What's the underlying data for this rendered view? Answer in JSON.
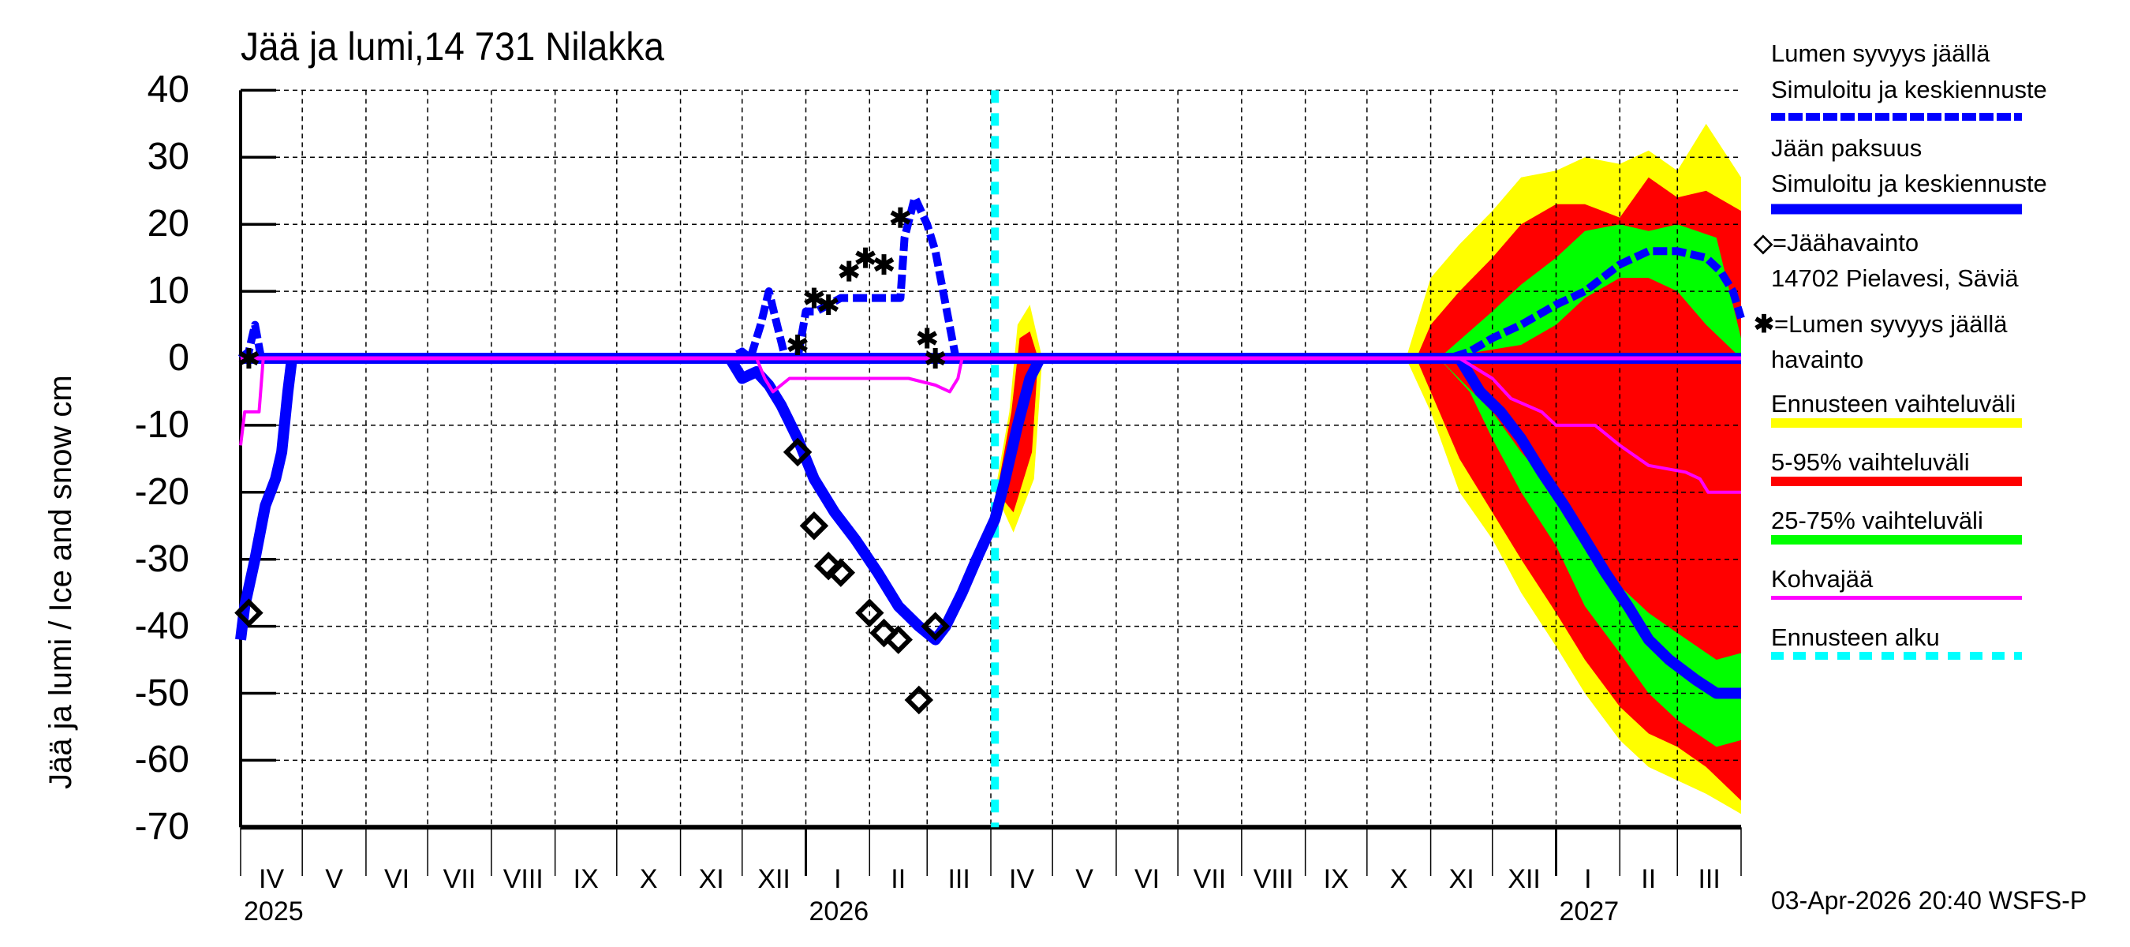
{
  "title": "Jää ja lumi,14 731 Nilakka",
  "y_axis_label": "Jää ja lumi / Ice and snow    cm",
  "timestamp": "03-Apr-2026 20:40 WSFS-P",
  "colors": {
    "simulated": "#0000ff",
    "kohvajaa": "#ff00ff",
    "range_full": "#ffff00",
    "range_5_95": "#ff0000",
    "range_25_75": "#00ff00",
    "forecast_start": "#00ffff",
    "observation": "#000000",
    "grid": "#000000"
  },
  "legend": {
    "snow_title": "Lumen syvyys jäällä",
    "snow_sub": "Simuloitu ja keskiennuste",
    "ice_title": "Jään paksuus",
    "ice_sub": "Simuloitu ja keskiennuste",
    "ice_obs_symbol": "◇",
    "ice_obs_label": "=Jäähavainto",
    "ice_obs_station": "14702 Pielavesi, Säviä",
    "snow_obs_symbol": "✱",
    "snow_obs_label": "=Lumen syvyys jäällä",
    "snow_obs_sub": "havainto",
    "range_full": "Ennusteen vaihteluväli",
    "range_5_95": "5-95% vaihteluväli",
    "range_25_75": "25-75% vaihteluväli",
    "kohvajaa": "Kohvajää",
    "forecast_start": "Ennusteen alku"
  },
  "y_ticks": [
    "40",
    "30",
    "20",
    "10",
    "0",
    "-10",
    "-20",
    "-30",
    "-40",
    "-50",
    "-60",
    "-70"
  ],
  "x_months": [
    "IV",
    "V",
    "VI",
    "VII",
    "VIII",
    "IX",
    "X",
    "XI",
    "XII",
    "I",
    "II",
    "III",
    "IV",
    "V",
    "VI",
    "VII",
    "VIII",
    "IX",
    "X",
    "XI",
    "XII",
    "I",
    "II",
    "III"
  ],
  "x_years": [
    "2025",
    "2026",
    "2027"
  ],
  "chart_data": {
    "type": "line",
    "title": "Jää ja lumi,14 731 Nilakka",
    "xlabel": "",
    "ylabel": "Jää ja lumi / Ice and snow cm",
    "ylim": [
      -70,
      40
    ],
    "xlim": [
      "2025-04-01",
      "2027-04-01"
    ],
    "grid": true,
    "legend_position": "right",
    "forecast_start": "2026-04-03",
    "note": "Ice thickness plotted as negative values (below 0), snow depth on ice as positive values",
    "series": [
      {
        "name": "Lumen syvyys jäällä – Simuloitu ja keskiennuste",
        "style": "dashed",
        "points": [
          [
            "2025-04-01",
            0
          ],
          [
            "2025-04-05",
            1
          ],
          [
            "2025-04-08",
            5
          ],
          [
            "2025-04-11",
            0
          ],
          [
            "2025-11-25",
            0
          ],
          [
            "2025-12-01",
            1
          ],
          [
            "2025-12-05",
            0
          ],
          [
            "2025-12-10",
            5
          ],
          [
            "2025-12-14",
            10
          ],
          [
            "2025-12-18",
            5
          ],
          [
            "2025-12-22",
            0
          ],
          [
            "2025-12-28",
            0
          ],
          [
            "2026-01-01",
            7
          ],
          [
            "2026-01-06",
            7
          ],
          [
            "2026-01-12",
            8
          ],
          [
            "2026-01-18",
            9
          ],
          [
            "2026-01-25",
            9
          ],
          [
            "2026-02-05",
            9
          ],
          [
            "2026-02-12",
            9
          ],
          [
            "2026-02-16",
            9
          ],
          [
            "2026-02-18",
            18
          ],
          [
            "2026-02-23",
            24
          ],
          [
            "2026-03-01",
            20
          ],
          [
            "2026-03-05",
            16
          ],
          [
            "2026-03-10",
            8
          ],
          [
            "2026-03-15",
            0
          ],
          [
            "2026-04-03",
            0
          ],
          [
            "2026-11-10",
            0
          ],
          [
            "2026-11-20",
            1
          ],
          [
            "2026-12-01",
            3
          ],
          [
            "2026-12-15",
            5
          ],
          [
            "2027-01-01",
            8
          ],
          [
            "2027-01-15",
            10
          ],
          [
            "2027-02-01",
            14
          ],
          [
            "2027-02-15",
            16
          ],
          [
            "2027-03-01",
            16
          ],
          [
            "2027-03-15",
            15
          ],
          [
            "2027-03-22",
            13
          ],
          [
            "2027-03-28",
            10
          ],
          [
            "2027-04-01",
            6
          ]
        ]
      },
      {
        "name": "Jään paksuus – Simuloitu ja keskiennuste",
        "style": "solid",
        "points": [
          [
            "2025-04-01",
            -42
          ],
          [
            "2025-04-03",
            -37
          ],
          [
            "2025-04-08",
            -30
          ],
          [
            "2025-04-13",
            -22
          ],
          [
            "2025-04-18",
            -18
          ],
          [
            "2025-04-21",
            -14
          ],
          [
            "2025-04-24",
            -5
          ],
          [
            "2025-04-26",
            0
          ],
          [
            "2025-11-25",
            0
          ],
          [
            "2025-12-01",
            -3
          ],
          [
            "2025-12-08",
            -2
          ],
          [
            "2025-12-14",
            -4
          ],
          [
            "2025-12-20",
            -7
          ],
          [
            "2025-12-28",
            -12
          ],
          [
            "2026-01-05",
            -18
          ],
          [
            "2026-01-15",
            -23
          ],
          [
            "2026-01-25",
            -27
          ],
          [
            "2026-02-05",
            -32
          ],
          [
            "2026-02-15",
            -37
          ],
          [
            "2026-02-25",
            -40
          ],
          [
            "2026-03-05",
            -42
          ],
          [
            "2026-03-10",
            -40
          ],
          [
            "2026-03-18",
            -35
          ],
          [
            "2026-03-25",
            -30
          ],
          [
            "2026-04-03",
            -24
          ],
          [
            "2026-04-08",
            -18
          ],
          [
            "2026-04-14",
            -10
          ],
          [
            "2026-04-20",
            -3
          ],
          [
            "2026-04-25",
            0
          ],
          [
            "2026-11-15",
            0
          ],
          [
            "2026-11-25",
            -5
          ],
          [
            "2026-12-05",
            -8
          ],
          [
            "2026-12-15",
            -12
          ],
          [
            "2026-12-25",
            -17
          ],
          [
            "2027-01-05",
            -22
          ],
          [
            "2027-01-15",
            -27
          ],
          [
            "2027-01-25",
            -32
          ],
          [
            "2027-02-05",
            -37
          ],
          [
            "2027-02-15",
            -42
          ],
          [
            "2027-02-25",
            -45
          ],
          [
            "2027-03-10",
            -48
          ],
          [
            "2027-03-20",
            -50
          ],
          [
            "2027-04-01",
            -50
          ]
        ]
      },
      {
        "name": "Kohvajää",
        "style": "solid",
        "points": [
          [
            "2025-04-01",
            -13
          ],
          [
            "2025-04-03",
            -8
          ],
          [
            "2025-04-10",
            -8
          ],
          [
            "2025-04-12",
            0
          ],
          [
            "2025-11-25",
            0
          ],
          [
            "2025-12-08",
            0
          ],
          [
            "2025-12-12",
            -3
          ],
          [
            "2025-12-16",
            -5
          ],
          [
            "2025-12-20",
            -4
          ],
          [
            "2025-12-24",
            -3
          ],
          [
            "2026-02-20",
            -3
          ],
          [
            "2026-03-05",
            -4
          ],
          [
            "2026-03-12",
            -5
          ],
          [
            "2026-03-16",
            -3
          ],
          [
            "2026-03-18",
            0
          ],
          [
            "2026-11-15",
            0
          ],
          [
            "2026-12-01",
            -3
          ],
          [
            "2026-12-10",
            -6
          ],
          [
            "2026-12-25",
            -8
          ],
          [
            "2027-01-01",
            -10
          ],
          [
            "2027-01-20",
            -10
          ],
          [
            "2027-02-01",
            -13
          ],
          [
            "2027-02-15",
            -16
          ],
          [
            "2027-03-05",
            -17
          ],
          [
            "2027-03-12",
            -18
          ],
          [
            "2027-03-16",
            -20
          ],
          [
            "2027-04-01",
            -20
          ]
        ]
      },
      {
        "name": "Jäähavainto 14702 Pielavesi, Säviä",
        "marker": "diamond",
        "points": [
          [
            "2025-04-05",
            -38
          ],
          [
            "2025-12-28",
            -14
          ],
          [
            "2026-01-05",
            -25
          ],
          [
            "2026-01-12",
            -31
          ],
          [
            "2026-01-18",
            -32
          ],
          [
            "2026-02-01",
            -38
          ],
          [
            "2026-02-08",
            -41
          ],
          [
            "2026-02-15",
            -42
          ],
          [
            "2026-02-25",
            -51
          ],
          [
            "2026-03-05",
            -40
          ]
        ]
      },
      {
        "name": "Lumen syvyys jäällä havainto",
        "marker": "asterisk",
        "points": [
          [
            "2025-04-05",
            0
          ],
          [
            "2025-12-28",
            2
          ],
          [
            "2026-01-05",
            9
          ],
          [
            "2026-01-12",
            8
          ],
          [
            "2026-01-22",
            13
          ],
          [
            "2026-01-30",
            15
          ],
          [
            "2026-02-08",
            14
          ],
          [
            "2026-02-16",
            21
          ],
          [
            "2026-03-01",
            3
          ],
          [
            "2026-03-05",
            0
          ]
        ]
      },
      {
        "name": "Ennusteen vaihteluväli (snow, upper)",
        "type": "area",
        "points": [
          [
            "2026-10-20",
            0
          ],
          [
            "2026-10-25",
            5
          ],
          [
            "2026-11-01",
            12
          ],
          [
            "2026-11-15",
            17
          ],
          [
            "2026-12-01",
            22
          ],
          [
            "2026-12-15",
            27
          ],
          [
            "2027-01-01",
            28
          ],
          [
            "2027-01-15",
            30
          ],
          [
            "2027-02-01",
            29
          ],
          [
            "2027-02-15",
            31
          ],
          [
            "2027-03-01",
            28
          ],
          [
            "2027-03-15",
            35
          ],
          [
            "2027-04-01",
            27
          ]
        ]
      },
      {
        "name": "5-95% vaihteluväli (snow, upper)",
        "type": "area",
        "points": [
          [
            "2026-10-25",
            0
          ],
          [
            "2026-11-01",
            5
          ],
          [
            "2026-11-15",
            10
          ],
          [
            "2026-12-01",
            15
          ],
          [
            "2026-12-15",
            20
          ],
          [
            "2027-01-01",
            23
          ],
          [
            "2027-01-15",
            23
          ],
          [
            "2027-02-01",
            21
          ],
          [
            "2027-02-15",
            27
          ],
          [
            "2027-03-01",
            24
          ],
          [
            "2027-03-15",
            25
          ],
          [
            "2027-04-01",
            22
          ]
        ]
      },
      {
        "name": "25-75% vaihteluväli (snow)",
        "type": "area",
        "upper": [
          [
            "2026-11-05",
            0
          ],
          [
            "2026-12-01",
            7
          ],
          [
            "2026-12-15",
            11
          ],
          [
            "2027-01-01",
            15
          ],
          [
            "2027-01-15",
            19
          ],
          [
            "2027-02-01",
            20
          ],
          [
            "2027-02-15",
            19
          ],
          [
            "2027-03-01",
            20
          ],
          [
            "2027-03-20",
            18
          ],
          [
            "2027-04-01",
            3
          ]
        ],
        "lower": [
          [
            "2026-11-05",
            0
          ],
          [
            "2026-12-15",
            2
          ],
          [
            "2027-01-01",
            5
          ],
          [
            "2027-01-15",
            9
          ],
          [
            "2027-02-01",
            12
          ],
          [
            "2027-02-15",
            12
          ],
          [
            "2027-03-01",
            10
          ],
          [
            "2027-03-15",
            5
          ],
          [
            "2027-04-01",
            0
          ]
        ]
      },
      {
        "name": "Ennusteen vaihteluväli (ice, lower)",
        "type": "area",
        "points": [
          [
            "2026-10-20",
            0
          ],
          [
            "2026-11-01",
            -8
          ],
          [
            "2026-11-15",
            -20
          ],
          [
            "2026-12-01",
            -27
          ],
          [
            "2026-12-15",
            -35
          ],
          [
            "2027-01-01",
            -43
          ],
          [
            "2027-01-15",
            -50
          ],
          [
            "2027-02-01",
            -57
          ],
          [
            "2027-02-15",
            -61
          ],
          [
            "2027-03-01",
            -63
          ],
          [
            "2027-03-15",
            -65
          ],
          [
            "2027-04-01",
            -68
          ]
        ]
      },
      {
        "name": "5-95% vaihteluväli (ice, lower)",
        "type": "area",
        "points": [
          [
            "2026-10-25",
            0
          ],
          [
            "2026-11-01",
            -5
          ],
          [
            "2026-11-15",
            -15
          ],
          [
            "2026-12-01",
            -23
          ],
          [
            "2026-12-15",
            -30
          ],
          [
            "2027-01-01",
            -38
          ],
          [
            "2027-01-15",
            -45
          ],
          [
            "2027-02-01",
            -52
          ],
          [
            "2027-02-15",
            -56
          ],
          [
            "2027-03-01",
            -58
          ],
          [
            "2027-03-15",
            -61
          ],
          [
            "2027-04-01",
            -66
          ]
        ]
      },
      {
        "name": "25-75% vaihteluväli (ice)",
        "type": "area",
        "upper": [
          [
            "2026-11-05",
            0
          ],
          [
            "2026-12-01",
            -8
          ],
          [
            "2026-12-15",
            -14
          ],
          [
            "2027-01-01",
            -20
          ],
          [
            "2027-01-15",
            -28
          ],
          [
            "2027-02-01",
            -34
          ],
          [
            "2027-02-15",
            -38
          ],
          [
            "2027-03-01",
            -41
          ],
          [
            "2027-03-20",
            -45
          ],
          [
            "2027-04-01",
            -44
          ]
        ],
        "lower": [
          [
            "2026-11-05",
            0
          ],
          [
            "2026-11-20",
            -5
          ],
          [
            "2026-12-01",
            -12
          ],
          [
            "2026-12-15",
            -20
          ],
          [
            "2027-01-01",
            -28
          ],
          [
            "2027-01-15",
            -37
          ],
          [
            "2027-02-01",
            -44
          ],
          [
            "2027-02-15",
            -50
          ],
          [
            "2027-03-01",
            -54
          ],
          [
            "2027-03-20",
            -58
          ],
          [
            "2027-04-01",
            -57
          ]
        ]
      }
    ]
  }
}
